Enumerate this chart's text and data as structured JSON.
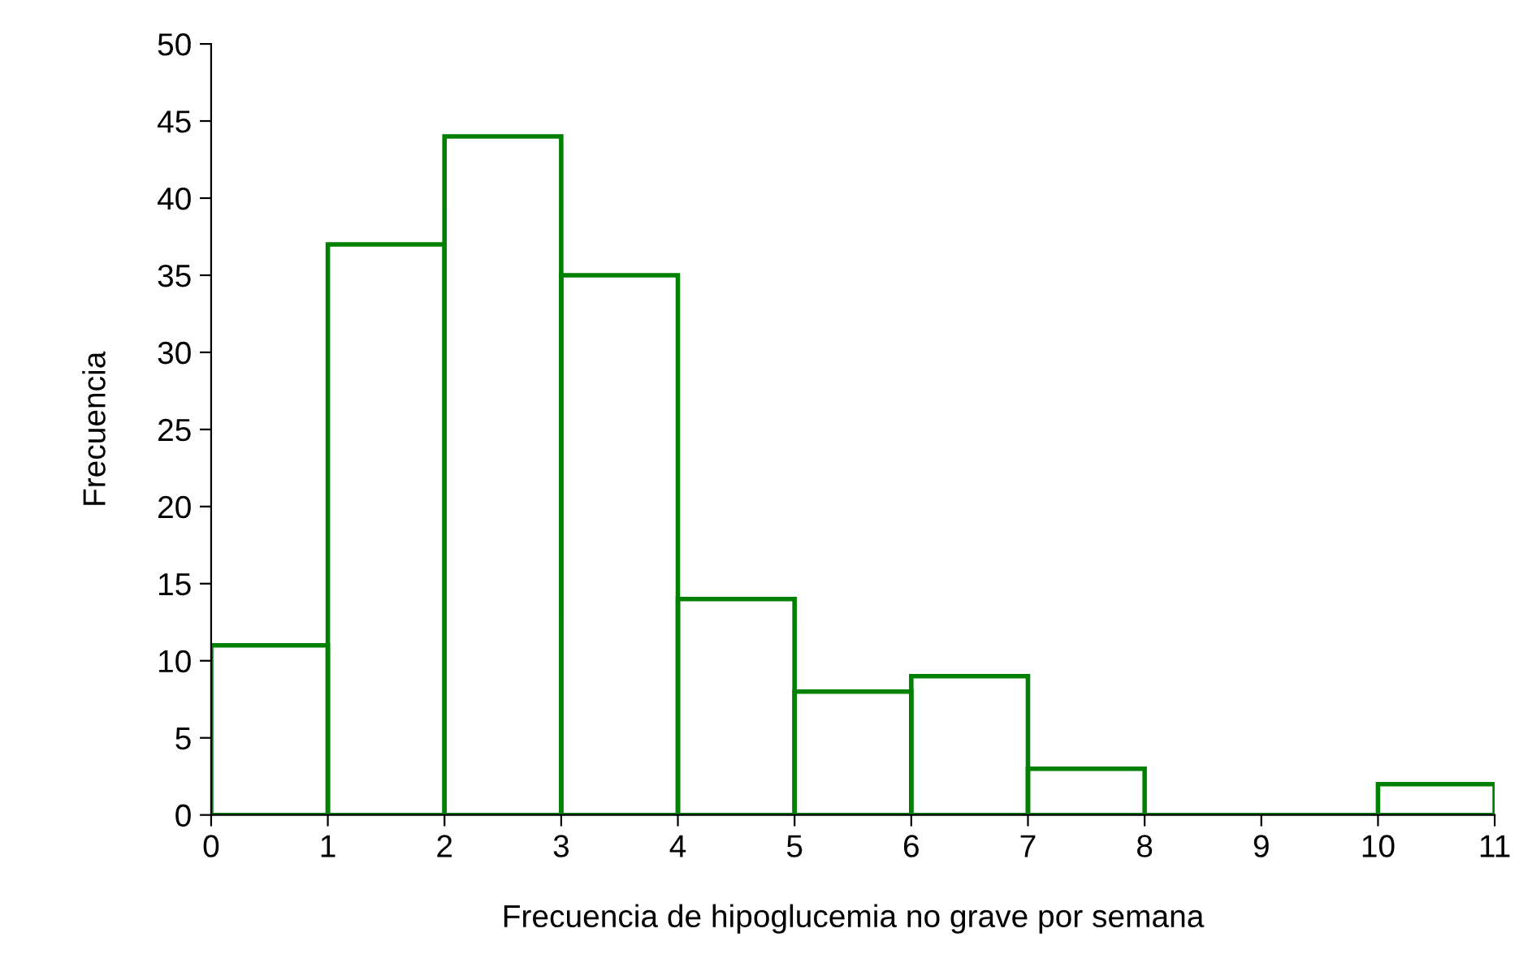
{
  "chart_data": {
    "type": "histogram",
    "xlabel": "Frecuencia de hipoglucemia no grave por semana",
    "ylabel": "Frecuencia",
    "bins": [
      0,
      1,
      2,
      3,
      4,
      5,
      6,
      7,
      8,
      9,
      10,
      11
    ],
    "values": [
      11,
      37,
      44,
      35,
      14,
      8,
      9,
      3,
      0,
      0,
      2
    ],
    "color": "#008000",
    "xlim": [
      0,
      11
    ],
    "xticks": [
      0,
      1,
      2,
      3,
      4,
      5,
      6,
      7,
      8,
      9,
      10,
      11
    ],
    "ylim": [
      0,
      50
    ],
    "yticks": [
      0,
      5,
      10,
      15,
      20,
      25,
      30,
      35,
      40,
      45,
      50
    ],
    "grid": false
  }
}
